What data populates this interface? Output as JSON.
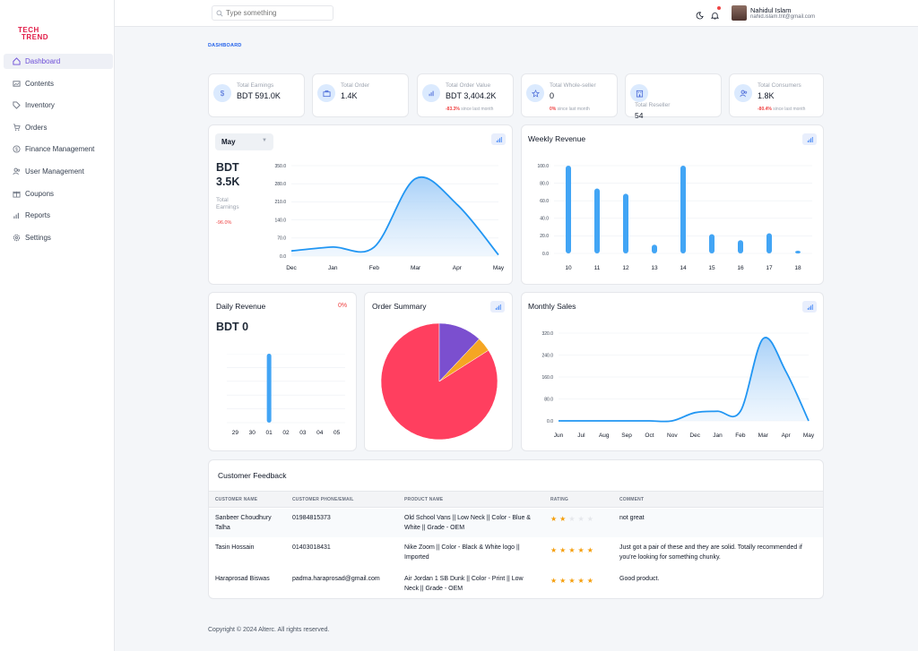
{
  "brand": {
    "logo_line1": "TECH",
    "logo_line2": "TREND"
  },
  "sidebar": {
    "items": [
      {
        "label": "Dashboard",
        "icon": "home-icon"
      },
      {
        "label": "Contents",
        "icon": "image-icon"
      },
      {
        "label": "Inventory",
        "icon": "tag-icon"
      },
      {
        "label": "Orders",
        "icon": "cart-icon"
      },
      {
        "label": "Finance Management",
        "icon": "dollar-icon"
      },
      {
        "label": "User Management",
        "icon": "users-icon"
      },
      {
        "label": "Coupons",
        "icon": "gift-icon"
      },
      {
        "label": "Reports",
        "icon": "bar-chart-icon"
      },
      {
        "label": "Settings",
        "icon": "gear-icon"
      }
    ]
  },
  "topbar": {
    "search_placeholder": "Type something",
    "user_name": "Nahidul Islam",
    "user_email": "nahid.islam.tnt@gmail.com"
  },
  "breadcrumb": "DASHBOARD",
  "stats": [
    {
      "label": "Total Earnings",
      "value": "BDT 591.0K",
      "icon": "dollar-icon"
    },
    {
      "label": "Total Order",
      "value": "1.4K",
      "icon": "briefcase-icon"
    },
    {
      "label": "Total Order Value",
      "value": "BDT 3,404.2K",
      "delta": "-83.3%",
      "delta_suffix": "since last month",
      "icon": "bar-chart-icon"
    },
    {
      "label": "Total Whole-seller",
      "value": "0",
      "delta": "0%",
      "delta_suffix": "since last month",
      "icon": "store-icon"
    },
    {
      "label": "Total Reseller",
      "value": "54",
      "icon": "building-icon"
    },
    {
      "label": "Total Consumers",
      "value": "1.8K",
      "delta": "-80.4%",
      "delta_suffix": "since last month",
      "icon": "users-icon"
    }
  ],
  "earnings": {
    "month": "May",
    "value_line1": "BDT",
    "value_line2": "3.5K",
    "label": "Total Earnings",
    "delta": "-96.0%"
  },
  "weekly": {
    "title": "Weekly Revenue"
  },
  "daily": {
    "title": "Daily Revenue",
    "delta": "0%",
    "value": "BDT 0"
  },
  "order_summary": {
    "title": "Order Summary"
  },
  "monthly": {
    "title": "Monthly Sales"
  },
  "chart_data": [
    {
      "type": "area",
      "x": [
        "Dec",
        "Jan",
        "Feb",
        "Mar",
        "Apr",
        "May"
      ],
      "values": [
        20,
        35,
        35,
        300,
        200,
        5
      ],
      "ylim": [
        0,
        350
      ],
      "yticks": [
        "350.0",
        "280.0",
        "210.0",
        "140.0",
        "70.0",
        "0.0"
      ],
      "title": "",
      "xlabel": "",
      "ylabel": ""
    },
    {
      "type": "bar",
      "categories": [
        "10",
        "11",
        "12",
        "13",
        "14",
        "15",
        "16",
        "17",
        "18"
      ],
      "values": [
        100,
        74,
        68,
        10,
        100,
        22,
        15,
        23,
        3
      ],
      "ylim": [
        0,
        100
      ],
      "yticks": [
        "100.0",
        "80.0",
        "60.0",
        "40.0",
        "20.0",
        "0.0"
      ],
      "title": "Weekly Revenue"
    },
    {
      "type": "bar",
      "categories": [
        "29",
        "30",
        "01",
        "02",
        "03",
        "04",
        "05"
      ],
      "values": [
        0,
        0,
        100,
        0,
        0,
        0,
        0
      ],
      "ylim": [
        0,
        100
      ],
      "title": "Daily Revenue"
    },
    {
      "type": "pie",
      "values": [
        84,
        12,
        4
      ],
      "colors": [
        "#ff3f5f",
        "#7b4fcf",
        "#f5a623"
      ],
      "title": "Order Summary"
    },
    {
      "type": "area",
      "x": [
        "Jun",
        "Jul",
        "Aug",
        "Sep",
        "Oct",
        "Nov",
        "Dec",
        "Jan",
        "Feb",
        "Mar",
        "Apr",
        "May"
      ],
      "values": [
        0,
        0,
        0,
        0,
        0,
        0,
        30,
        35,
        35,
        300,
        180,
        0
      ],
      "ylim": [
        0,
        320
      ],
      "yticks": [
        "320.0",
        "240.0",
        "160.0",
        "80.0",
        "0.0"
      ],
      "title": "Monthly Sales"
    }
  ],
  "feedback": {
    "title": "Customer Feedback",
    "headers": [
      "CUSTOMER NAME",
      "CUSTOMER PHONE/EMAIL",
      "PRODUCT NAME",
      "RATING",
      "COMMENT"
    ],
    "rows": [
      {
        "name": "Sanbeer Choudhury Talha",
        "contact": "01984815373",
        "product": "Old School Vans || Low Neck || Color - Blue & White || Grade - OEM",
        "rating": 2,
        "comment": "not great"
      },
      {
        "name": "Tasin Hossain",
        "contact": "01403018431",
        "product": "Nike Zoom || Color - Black & White logo || Imported",
        "rating": 5,
        "comment": "Just got a pair of these and they are solid. Totally recommended if you're looking for something chunky."
      },
      {
        "name": "Haraprosad Biswas",
        "contact": "padma.haraprosad@gmail.com",
        "product": "Air Jordan 1 SB Dunk || Color - Print || Low Neck || Grade - OEM",
        "rating": 5,
        "comment": "Good product."
      }
    ]
  },
  "footer": "Copyright © 2024 Alterc. All rights reserved.",
  "colors": {
    "accent": "#6d4ed8",
    "chart_blue": "#2196f3",
    "area_fill": "#bfdcfb"
  }
}
